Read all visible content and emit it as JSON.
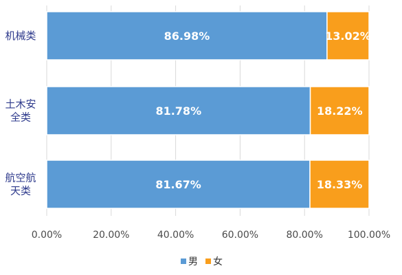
{
  "chart_data": {
    "type": "bar",
    "orientation": "horizontal",
    "stacked": true,
    "categories": [
      [
        "机械类"
      ],
      [
        "土木安",
        "全类"
      ],
      [
        "航空航",
        "天类"
      ]
    ],
    "series": [
      {
        "name": "男",
        "color": "#5b9bd5",
        "values": [
          86.98,
          81.78,
          81.67
        ],
        "labels": [
          "86.98%",
          "81.78%",
          "81.67%"
        ]
      },
      {
        "name": "女",
        "color": "#f99e1c",
        "values": [
          13.02,
          18.22,
          18.33
        ],
        "labels": [
          "13.02%",
          "18.22%",
          "18.33%"
        ]
      }
    ],
    "xlim": [
      0,
      100
    ],
    "x_ticks": [
      "0.00%",
      "20.00%",
      "40.00%",
      "60.00%",
      "80.00%",
      "100.00%"
    ],
    "grid": true,
    "legend_position": "bottom"
  }
}
